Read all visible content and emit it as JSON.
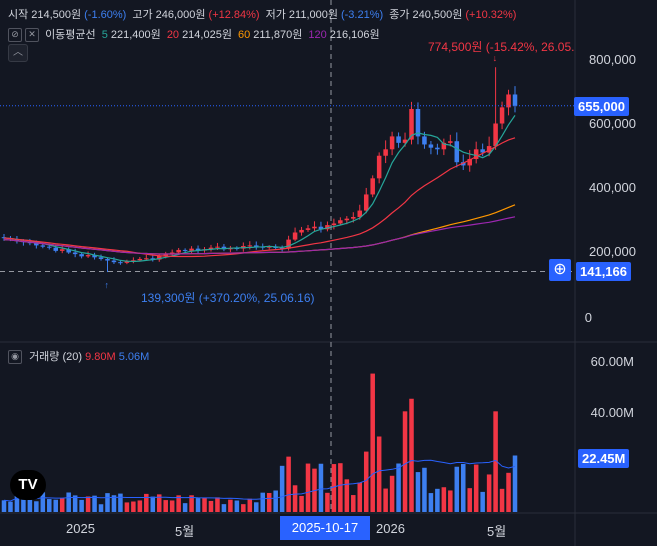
{
  "header": {
    "open_label": "시작",
    "open_value": "214,500원",
    "open_change": "(-1.60%)",
    "high_label": "고가",
    "high_value": "246,000원",
    "high_change": "(+12.84%)",
    "low_label": "저가",
    "low_value": "211,000원",
    "low_change": "(-3.21%)",
    "close_label": "종가",
    "close_value": "240,500원",
    "close_change": "(+10.32%)"
  },
  "ma_legend": {
    "title": "이동평균선",
    "ma5_period": "5",
    "ma5_value": "221,400원",
    "ma20_period": "20",
    "ma20_value": "214,025원",
    "ma60_period": "60",
    "ma60_value": "211,870원",
    "ma120_period": "120",
    "ma120_value": "216,106원"
  },
  "volume_legend": {
    "title": "거래량 (20)",
    "v1": "9.80M",
    "v2": "5.06M"
  },
  "price_axis": [
    "800,000",
    "600,000",
    "400,000",
    "200,000",
    "0"
  ],
  "volume_axis": [
    "60.00M",
    "40.00M"
  ],
  "current_price_tag": "655,000",
  "crosshair_price_tag": "141,166",
  "volume_tag": "22.45M",
  "time_axis": [
    "2025",
    "5월",
    "2026",
    "5월"
  ],
  "crosshair_time_tag": "2025-10-17",
  "high_annotation": "774,500원 (-15.42%, 26.05.",
  "low_annotation": "139,300원 (+370.20%, 25.06.16)",
  "logo_text": "TV",
  "colors": {
    "up": "#f23645",
    "down": "#3d7ff0",
    "accent": "#2962ff",
    "bg": "#131722"
  },
  "chart_data": {
    "type": "candlestick",
    "interval": "weekly",
    "price_ylim": [
      0,
      900000
    ],
    "volume_ylim": [
      0,
      70000000
    ],
    "current_price": 655000,
    "crosshair_price": 141166,
    "high": {
      "value": 774500,
      "date": "26.05."
    },
    "low": {
      "value": 139300,
      "date": "25.06.16"
    },
    "close_series": [
      245000,
      242000,
      236000,
      232000,
      230000,
      222000,
      218000,
      215000,
      205000,
      210000,
      200000,
      195000,
      188000,
      192000,
      185000,
      180000,
      175000,
      170000,
      168000,
      172000,
      176000,
      180000,
      182000,
      178000,
      190000,
      195000,
      200000,
      208000,
      205000,
      212000,
      206000,
      210000,
      215000,
      218000,
      210000,
      214000,
      212000,
      220000,
      222000,
      218000,
      216000,
      218000,
      214000,
      212000,
      240000,
      262000,
      270000,
      275000,
      280000,
      272000,
      285000,
      290000,
      300000,
      305000,
      310000,
      330000,
      380000,
      430000,
      500000,
      520000,
      560000,
      540000,
      550000,
      645000,
      560000,
      535000,
      525000,
      520000,
      540000,
      545000,
      480000,
      470000,
      490000,
      520000,
      510000,
      530000,
      600000,
      650000,
      690000,
      655000
    ],
    "ma_series": [
      {
        "name": "5",
        "color": "#26a69a"
      },
      {
        "name": "20",
        "color": "#f23645"
      },
      {
        "name": "60",
        "color": "#ff9800"
      },
      {
        "name": "120",
        "color": "#9c27b0"
      }
    ],
    "volume_peaks_m": [
      55,
      24,
      40,
      45,
      40,
      22
    ]
  }
}
